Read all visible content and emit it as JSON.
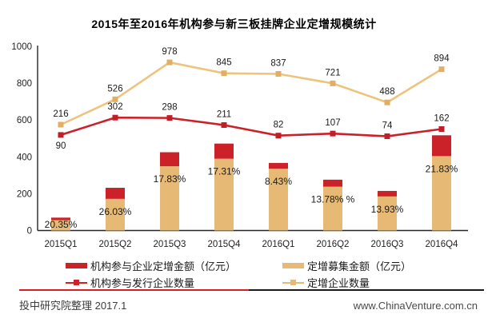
{
  "chart_data": {
    "type": "bar",
    "subtype": "stacked-bars-with-lines",
    "title": "2015年至2016年机构参与新三板挂牌企业定增规模统计",
    "categories": [
      "2015Q1",
      "2015Q2",
      "2015Q3",
      "2015Q4",
      "2016Q1",
      "2016Q2",
      "2016Q3",
      "2016Q4"
    ],
    "y_axis": {
      "min": 0,
      "max": 1000,
      "ticks": [
        1000,
        800,
        600,
        400,
        200,
        0
      ]
    },
    "grid": "off",
    "legend_position": "bottom",
    "bar_series": [
      {
        "name": "机构参与企业定增金额（亿元）",
        "color": "#CB2129",
        "stack_position": "top",
        "values": [
          14,
          60,
          76,
          82,
          31,
          38,
          30,
          113
        ]
      },
      {
        "name": "定增募集金额（亿元）",
        "color": "#E6BA74",
        "stack_position": "bottom",
        "values": [
          56,
          172,
          349,
          390,
          336,
          238,
          185,
          404
        ]
      }
    ],
    "pct_labels": [
      "20.35%",
      "26.03%",
      "17.83%",
      "17.31%",
      "8.43%",
      "13.78% %",
      "13.93%",
      "21.83%"
    ],
    "line_series": [
      {
        "name": "定增企业数量",
        "color": "#EEC37D",
        "marker_color": "#E2AE63",
        "values": [
          216,
          526,
          978,
          845,
          837,
          721,
          488,
          894
        ],
        "first_label_below": false
      },
      {
        "name": "机构参与发行企业数量",
        "color": "#CB2129",
        "marker_color": "#C21E27",
        "values": [
          90,
          302,
          298,
          211,
          82,
          107,
          74,
          162
        ],
        "first_label_below": true
      }
    ]
  },
  "legend": {
    "items": [
      {
        "label": "机构参与企业定增金额（亿元）",
        "color": "#CB2129",
        "type": "bar"
      },
      {
        "label": "定增募集金额（亿元）",
        "color": "#E6BA74",
        "type": "bar"
      },
      {
        "label": "机构参与发行企业数量",
        "color": "#CB2129",
        "type": "line"
      },
      {
        "label": "定增企业数量",
        "color": "#E6BA74",
        "type": "line"
      }
    ]
  },
  "footer": {
    "source": "投中研究院整理 2017.1",
    "website": "www.ChinaVenture.com.cn",
    "separator_red": "#D81E1E"
  }
}
